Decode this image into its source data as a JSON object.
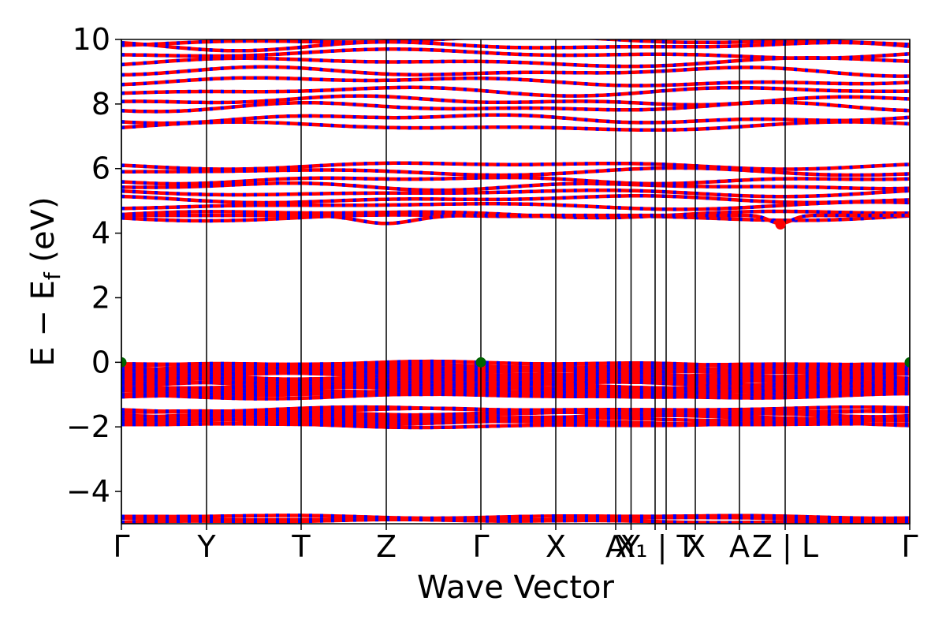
{
  "chart_data": {
    "type": "line",
    "title": "",
    "xlabel": "Wave Vector",
    "ylabel": "E − E_f (eV)",
    "ylabel_main": "E − E",
    "ylabel_sub": "f",
    "ylabel_tail": " (eV)",
    "ylim": [
      -5,
      10
    ],
    "yticks": [
      -4,
      -2,
      0,
      2,
      4,
      6,
      8,
      10
    ],
    "ytick_labels": [
      "−4",
      "−2",
      "0",
      "2",
      "4",
      "6",
      "8",
      "10"
    ],
    "xlim": [
      0,
      1
    ],
    "kpoints": [
      {
        "label": "Γ",
        "x": 0.0
      },
      {
        "label": "Y",
        "x": 0.108
      },
      {
        "label": "T",
        "x": 0.228
      },
      {
        "label": "Z",
        "x": 0.336
      },
      {
        "label": "Γ",
        "x": 0.456
      },
      {
        "label": "X",
        "x": 0.551
      },
      {
        "label": "A",
        "x": 0.627
      },
      {
        "label": "Y",
        "x": 0.6465
      },
      {
        "label": "X₁ | T",
        "x": 0.677
      },
      {
        "label": "",
        "x": 0.691
      },
      {
        "label": "X",
        "x": 0.728
      },
      {
        "label": "A",
        "x": 0.784
      },
      {
        "label": "Z | L",
        "x": 0.842
      },
      {
        "label": "Γ",
        "x": 1.0
      }
    ],
    "series": [
      {
        "color": "#ff0000"
      },
      {
        "color": "#0000ff"
      }
    ],
    "markers": [
      {
        "x": 0.0,
        "y": 0.0,
        "color": "#006400"
      },
      {
        "x": 0.456,
        "y": 0.0,
        "color": "#006400"
      },
      {
        "x": 1.0,
        "y": 0.0,
        "color": "#006400"
      },
      {
        "x": 0.836,
        "y": 4.27,
        "color": "#ff0000"
      }
    ],
    "grid": false,
    "legend": "none"
  }
}
